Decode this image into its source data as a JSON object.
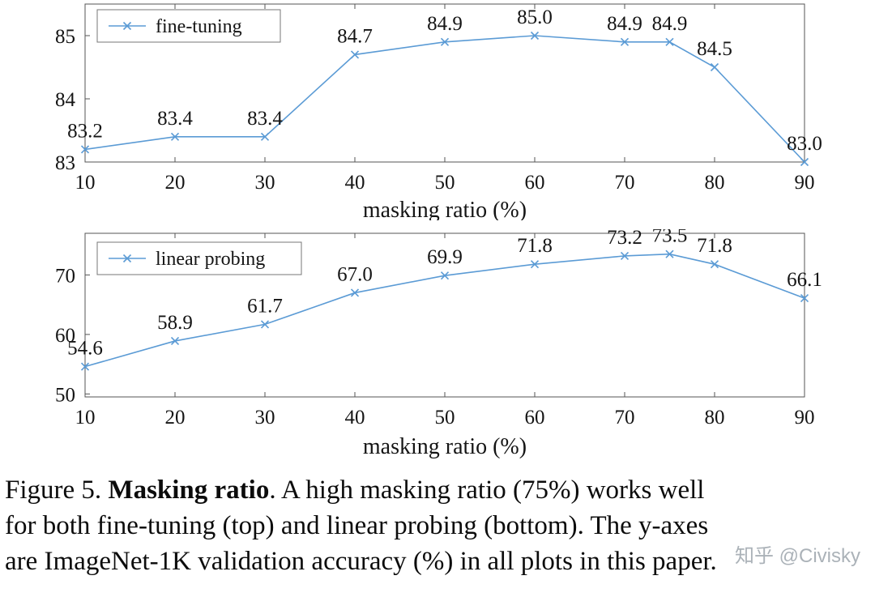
{
  "caption": {
    "line1_prefix": "Figure 5. ",
    "line1_bold": "Masking ratio",
    "line1_rest": ". A high masking ratio (75%) works well",
    "line2": "for both fine-tuning (top) and linear probing (bottom). The y-axes",
    "line3": "are ImageNet-1K validation accuracy (%) in all plots in this paper."
  },
  "watermark": {
    "text": "知乎 @Civisky"
  },
  "colors": {
    "line": "#5b9bd5",
    "axis": "#555555",
    "label_text": "#151515",
    "legend_border": "#777777",
    "watermark": "#a2aab1"
  },
  "chart_data": [
    {
      "type": "line",
      "title": "",
      "legend": "fine-tuning",
      "legend_position": "top-left",
      "xlabel": "masking ratio (%)",
      "ylabel": "",
      "x": [
        10,
        20,
        30,
        40,
        50,
        60,
        70,
        75,
        80,
        90
      ],
      "values": [
        83.2,
        83.4,
        83.4,
        84.7,
        84.9,
        85.0,
        84.9,
        84.9,
        84.5,
        83.0
      ],
      "xticks": [
        10,
        20,
        30,
        40,
        50,
        60,
        70,
        80,
        90
      ],
      "yticks": [
        83,
        84,
        85
      ],
      "xlim": [
        10,
        90
      ],
      "ylim": [
        83,
        85.5
      ],
      "marker": "x",
      "line_color": "#5b9bd5",
      "grid": false,
      "data_labels": true
    },
    {
      "type": "line",
      "title": "",
      "legend": "linear probing",
      "legend_position": "top-left",
      "xlabel": "masking ratio (%)",
      "ylabel": "",
      "x": [
        10,
        20,
        30,
        40,
        50,
        60,
        70,
        75,
        80,
        90
      ],
      "values": [
        54.6,
        58.9,
        61.7,
        67.0,
        69.9,
        71.8,
        73.2,
        73.5,
        71.8,
        66.1
      ],
      "xticks": [
        10,
        20,
        30,
        40,
        50,
        60,
        70,
        80,
        90
      ],
      "yticks": [
        50,
        60,
        70
      ],
      "xlim": [
        10,
        90
      ],
      "ylim": [
        49.5,
        77
      ],
      "marker": "x",
      "line_color": "#5b9bd5",
      "grid": false,
      "data_labels": true
    }
  ]
}
